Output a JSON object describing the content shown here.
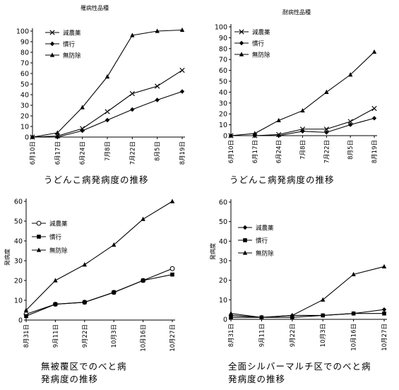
{
  "chart_data": [
    {
      "type": "line",
      "title": "罹病性品種",
      "caption": [
        "うどんこ病発病度の推移"
      ],
      "ylabel": "",
      "ylim": [
        0,
        100
      ],
      "yticks": [
        0,
        10,
        20,
        30,
        40,
        50,
        60,
        70,
        80,
        90,
        100
      ],
      "x": [
        "6月10日",
        "6月17日",
        "6月24日",
        "7月8日",
        "7月22日",
        "8月5日",
        "8月19日"
      ],
      "legend_position": "top-left",
      "series": [
        {
          "name": "減農薬",
          "marker": "x",
          "values": [
            0,
            1,
            8,
            24,
            41,
            48,
            63
          ]
        },
        {
          "name": "慣行",
          "marker": "diamond",
          "values": [
            0,
            0,
            6,
            16,
            26,
            35,
            43
          ]
        },
        {
          "name": "無防除",
          "marker": "triangle",
          "values": [
            0,
            4,
            28,
            57,
            96,
            100,
            101
          ]
        }
      ]
    },
    {
      "type": "line",
      "title": "耐病性品種",
      "caption": [
        "うどんこ病発病度の推移"
      ],
      "ylabel": "",
      "ylim": [
        0,
        100
      ],
      "yticks": [
        0,
        10,
        20,
        30,
        40,
        50,
        60,
        70,
        80,
        90,
        100
      ],
      "x": [
        "6月10日",
        "6月17日",
        "6月24日",
        "7月8日",
        "7月22日",
        "8月5日",
        "8月19日"
      ],
      "legend_position": "top-left",
      "series": [
        {
          "name": "減農薬",
          "marker": "x",
          "values": [
            0,
            0,
            1,
            6,
            6,
            13,
            25
          ]
        },
        {
          "name": "慣行",
          "marker": "diamond",
          "values": [
            0,
            0,
            0,
            4,
            3,
            10,
            16
          ]
        },
        {
          "name": "無防除",
          "marker": "triangle",
          "values": [
            0,
            2,
            14,
            23,
            40,
            56,
            77
          ]
        }
      ]
    },
    {
      "type": "line",
      "title": "",
      "caption": [
        "無被覆区でのべと病",
        "発病度の推移"
      ],
      "ylabel": "発病度",
      "ylim": [
        0,
        60
      ],
      "yticks": [
        0,
        10,
        20,
        30,
        40,
        50,
        60
      ],
      "x": [
        "8月31日",
        "9月11日",
        "9月22日",
        "10月3日",
        "10月16日",
        "10月27日"
      ],
      "legend_position": "upper-left",
      "series": [
        {
          "name": "減農薬",
          "marker": "circle",
          "values": [
            3,
            8,
            9,
            14,
            20,
            26
          ]
        },
        {
          "name": "慣行",
          "marker": "square",
          "values": [
            2,
            8,
            9,
            14,
            20,
            23
          ]
        },
        {
          "name": "無防除",
          "marker": "triangle",
          "values": [
            5,
            20,
            28,
            38,
            51,
            60
          ]
        }
      ]
    },
    {
      "type": "line",
      "title": "",
      "caption": [
        "全面シルバーマルチ区でのべと病",
        "発病度の推移"
      ],
      "ylabel": "発病度",
      "ylim": [
        0,
        60
      ],
      "yticks": [
        0,
        10,
        20,
        30,
        40,
        50,
        60
      ],
      "x": [
        "8月31日",
        "9月11日",
        "9月22日",
        "10月3日",
        "10月16日",
        "10月27日"
      ],
      "legend_position": "upper-left",
      "series": [
        {
          "name": "減農薬",
          "marker": "diamond",
          "values": [
            2,
            1,
            2,
            2,
            3,
            5
          ]
        },
        {
          "name": "慣行",
          "marker": "square",
          "values": [
            1,
            1,
            1,
            2,
            3,
            3
          ]
        },
        {
          "name": "無防除",
          "marker": "triangle",
          "values": [
            3,
            1,
            2,
            10,
            23,
            27
          ]
        }
      ]
    }
  ]
}
